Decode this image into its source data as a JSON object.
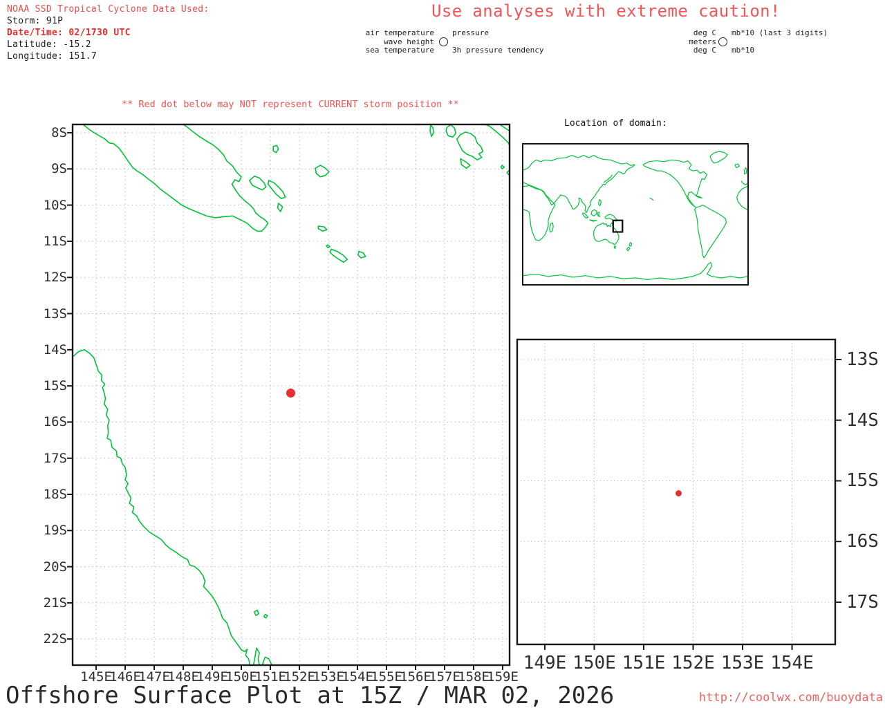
{
  "header": {
    "source_line": "NOAA SSD Tropical Cyclone Data Used:",
    "storm_line": "Storm: 91P",
    "datetime_line": "Date/Time: 02/1730 UTC",
    "latitude_line": "Latitude: -15.2",
    "longitude_line": "Longitude: 151.7"
  },
  "caution_banner": "Use analyses with extreme caution!",
  "station_model_legend": {
    "labels": {
      "top_left": "air temperature",
      "middle_left": "wave height",
      "bottom_left": "sea temperature",
      "top_right": "pressure",
      "bottom_right": "3h pressure tendency"
    },
    "units": {
      "top_left": "deg C",
      "middle_left": "meters",
      "bottom_left": "deg C",
      "top_right": "mb*10 (last 3 digits)",
      "bottom_right": "mb*10"
    }
  },
  "warning_note": "** Red dot below may NOT represent CURRENT storm position **",
  "main_map": {
    "lat_tick_labels": [
      "8S",
      "9S",
      "10S",
      "11S",
      "12S",
      "13S",
      "14S",
      "15S",
      "16S",
      "17S",
      "18S",
      "19S",
      "20S",
      "21S",
      "22S"
    ],
    "lon_tick_labels": [
      "145E",
      "146E",
      "147E",
      "148E",
      "149E",
      "150E",
      "151E",
      "152E",
      "153E",
      "154E",
      "155E",
      "156E",
      "157E",
      "158E",
      "159E"
    ],
    "storm_dot": {
      "longitude_e": 151.7,
      "latitude_s": 15.2
    }
  },
  "domain_inset": {
    "title": "Location of domain:"
  },
  "zoom_map": {
    "lat_tick_labels": [
      "13S",
      "14S",
      "15S",
      "16S",
      "17S"
    ],
    "lon_tick_labels": [
      "149E",
      "150E",
      "151E",
      "152E",
      "153E",
      "154E"
    ],
    "storm_dot": {
      "longitude_e": 151.7,
      "latitude_s": 15.2
    }
  },
  "footer": {
    "title": "Offshore Surface Plot at 15Z / MAR 02, 2026",
    "url": "http://coolwx.com/buoydata"
  },
  "colors": {
    "red_text": "#f04848",
    "red_bold": "#ea2c2c",
    "storm_dot": "#e93030",
    "coast_green": "#00c33a",
    "grid_gray": "#b0b0b0",
    "axis_black": "#161616"
  }
}
